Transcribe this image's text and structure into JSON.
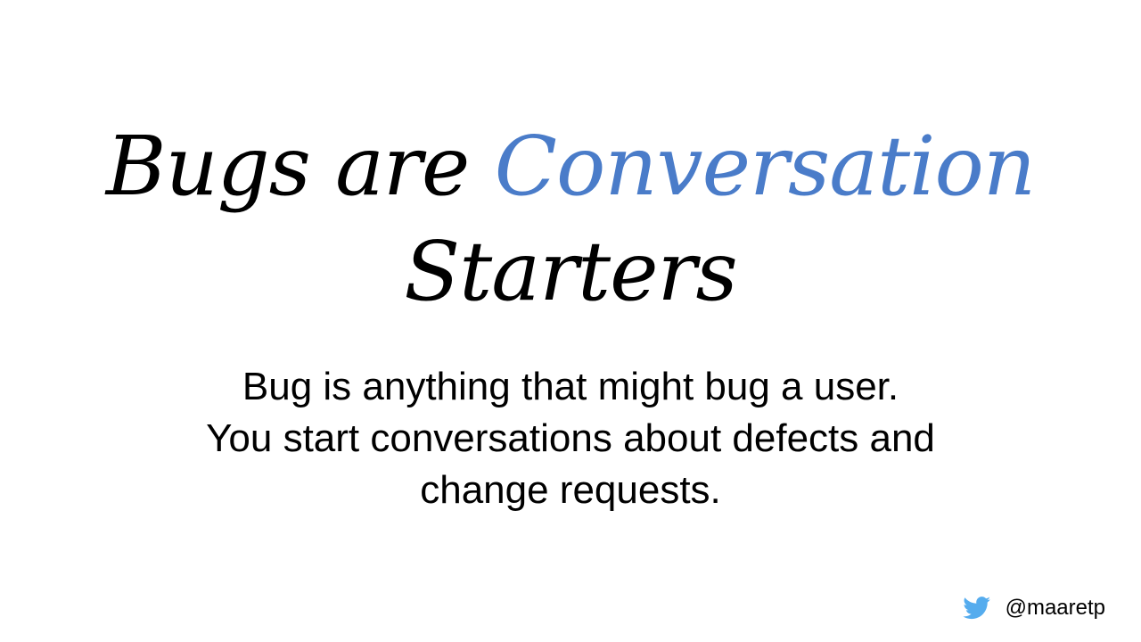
{
  "slide": {
    "title_part1": "Bugs are ",
    "title_part2": "Conversation",
    "title_line2": "Starters",
    "body_lines": [
      "Bug is anything that might bug a user.",
      "You start conversations about defects and",
      "change requests."
    ],
    "footer": {
      "icon": "twitter-icon",
      "handle": "@maaretp"
    },
    "colors": {
      "accent": "#4a7cc9",
      "text": "#000000",
      "twitter": "#55acee",
      "background": "#ffffff"
    }
  }
}
